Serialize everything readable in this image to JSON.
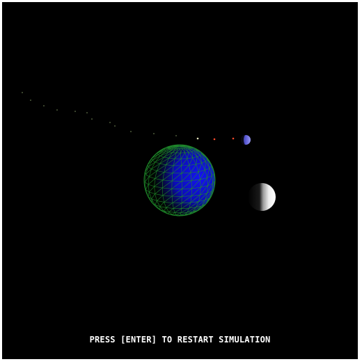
{
  "hud": {
    "restart_message": "PRESS [ENTER] TO RESTART SIMULATION"
  },
  "colors": {
    "background": "#000000",
    "planet_wireframe": "#1f8a2a",
    "planet_ocean": "#1010d8",
    "small_planet": "#6a6ae6",
    "moon_light": "#f2f2f2",
    "moon_dark": "#0a0a0a",
    "trail_dim": "#4d5a3a",
    "trail_bright": "#ff4a2a"
  },
  "trail": {
    "point_count": 16,
    "emphasized_points": 3
  }
}
